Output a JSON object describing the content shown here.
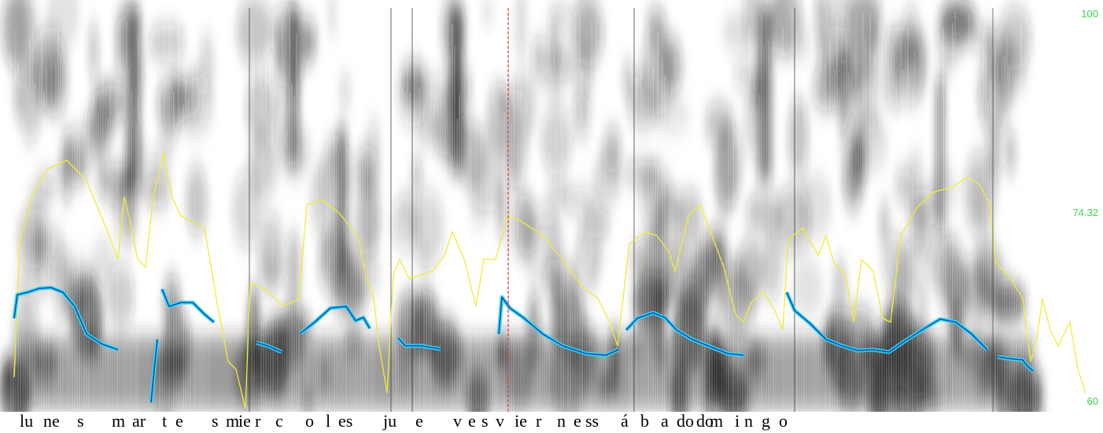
{
  "colors": {
    "background": "#ffffff",
    "spectrogram_dark": "#1a1a1a",
    "intensity_curve": "#f2ec3a",
    "pitch_curve": "#0a6fd8",
    "pitch_glow": "#33d6f5",
    "cursor": "#d63a3a",
    "scale_label": "#39d64a",
    "text": "#000000"
  },
  "scale": {
    "top": "100",
    "mid": "74.32",
    "bottom": "60"
  },
  "transcript": {
    "segments": [
      "lu",
      "ne",
      "s",
      "m",
      "ar",
      "t",
      "e",
      "s",
      "m",
      "ie",
      "r",
      "c",
      "o",
      "l",
      "es",
      "ju",
      "e",
      "v",
      "e",
      "s",
      "v",
      "ie",
      "r",
      "n",
      "e",
      "ss",
      "á",
      "b",
      "a",
      "do",
      "do",
      "m",
      "i",
      "n",
      "g",
      "o"
    ]
  },
  "icons": {
    "cursor": "playback-cursor-line"
  }
}
